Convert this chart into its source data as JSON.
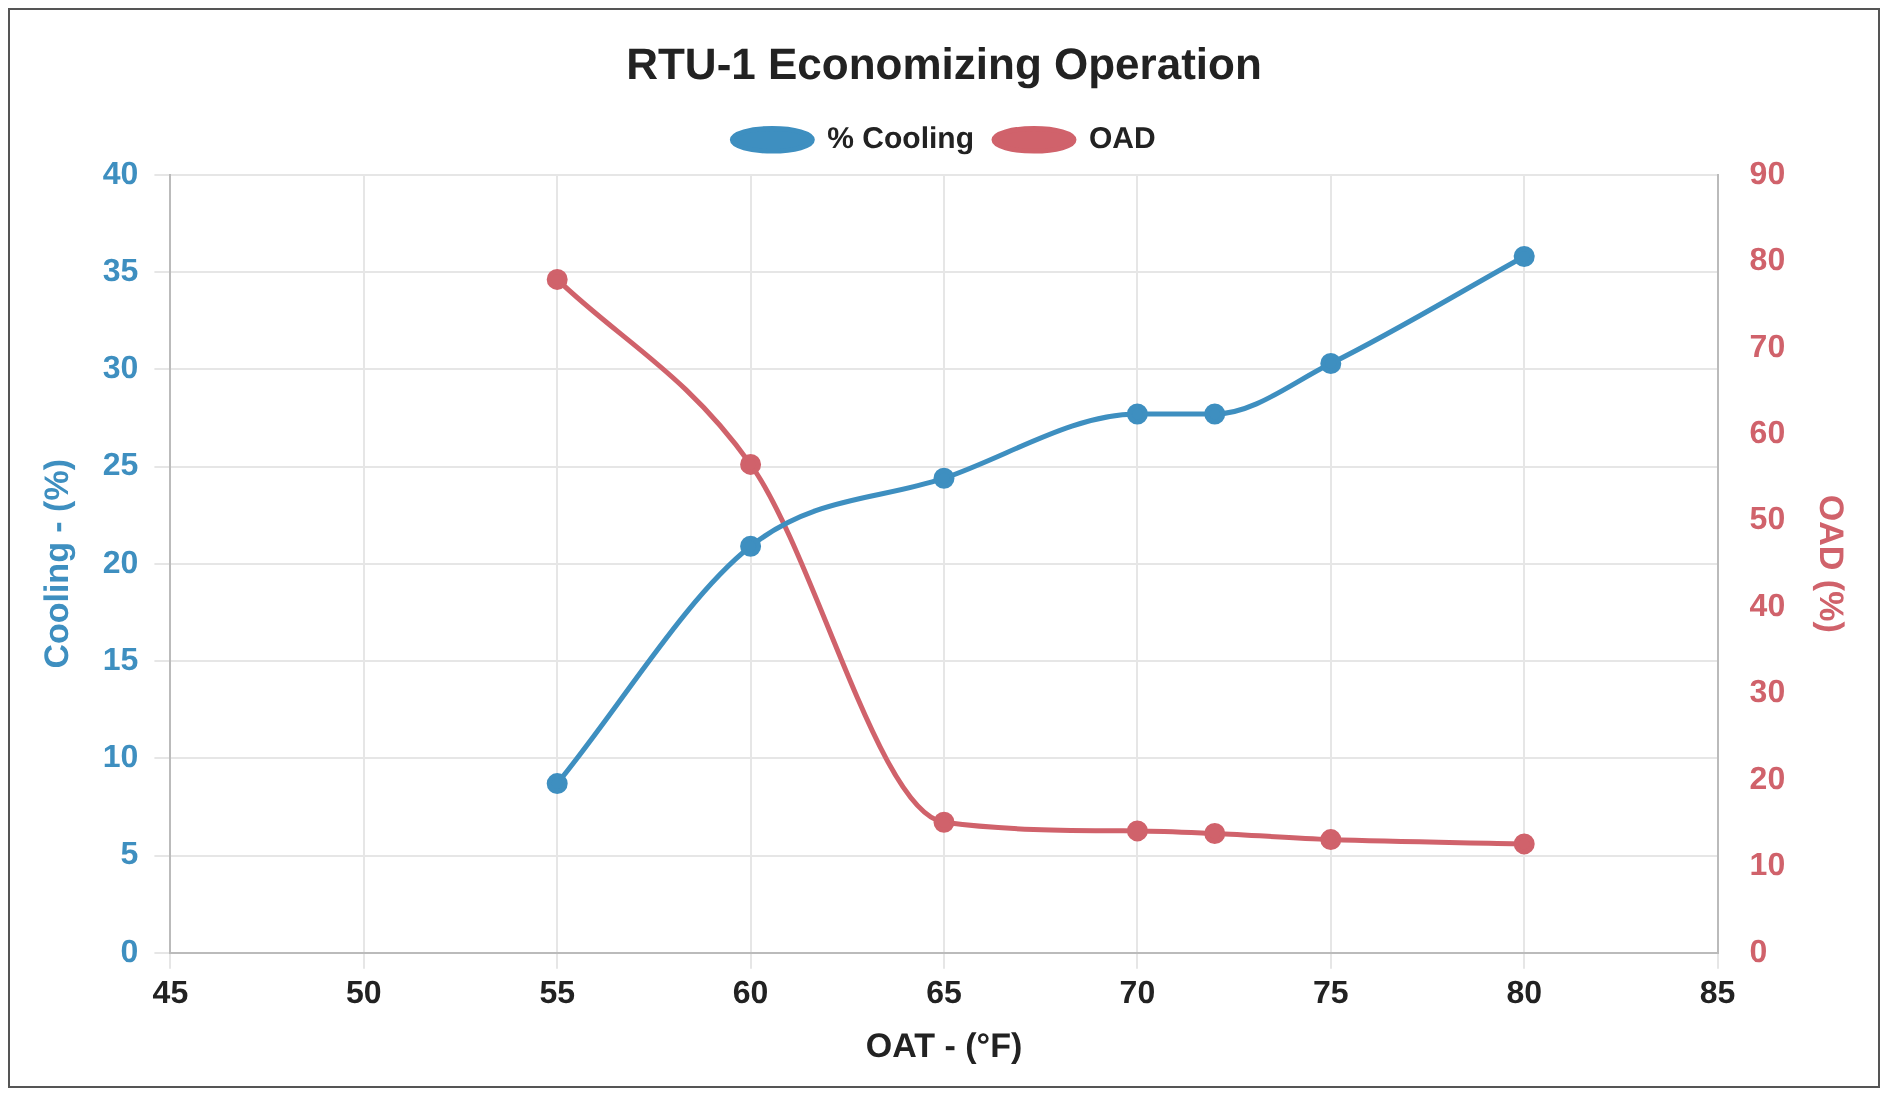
{
  "chart_data": {
    "type": "line",
    "title": "RTU-1 Economizing Operation",
    "xlabel": "OAT - (°F)",
    "ylabel": "Cooling - (%)",
    "y2label": "OAD (%)",
    "x": [
      55,
      60,
      65,
      70,
      72,
      75,
      80
    ],
    "series": [
      {
        "name": "% Cooling",
        "color": "#3e8fc0",
        "values": [
          8.7,
          20.9,
          24.4,
          27.7,
          27.7,
          30.3,
          35.8
        ]
      },
      {
        "name": "OAD",
        "color": "#d0626b",
        "axis": "y2",
        "values": [
          77.9,
          56.5,
          15.1,
          14.1,
          13.8,
          13.1,
          12.6
        ]
      }
    ],
    "xlim": [
      45,
      85
    ],
    "xticks": [
      45,
      50,
      55,
      60,
      65,
      70,
      75,
      80,
      85
    ],
    "ylim": [
      0,
      40
    ],
    "yticks": [
      0,
      5,
      10,
      15,
      20,
      25,
      30,
      35,
      40
    ],
    "y2lim": [
      0,
      90
    ],
    "y2ticks": [
      0,
      10,
      20,
      30,
      40,
      50,
      60,
      70,
      80,
      90
    ],
    "grid": true,
    "legend": "top",
    "marker": "circle",
    "line_style": "solid"
  }
}
